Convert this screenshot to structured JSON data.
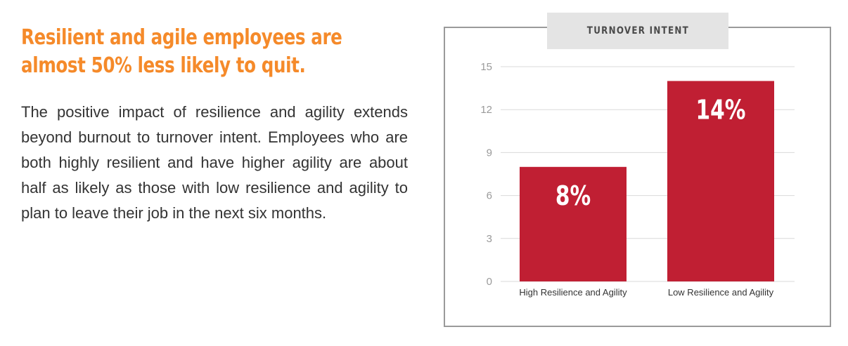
{
  "headline": {
    "line1": "Resilient and agile employees are",
    "line2": "almost 50% less likely to quit."
  },
  "body_text": "The positive impact of resilience and agility extends beyond burnout to turnover intent. Employees who are both highly resilient and have higher agility are about half as likely as those with low resilience and agility to plan to leave their job in the next six months.",
  "colors": {
    "headline": "#f58a2a",
    "bar": "#c01f33",
    "grid": "#d9d9d9",
    "tab": "#e4e4e4"
  },
  "chart_data": {
    "type": "bar",
    "title": "TURNOVER INTENT",
    "categories": [
      "High Resilience and Agility",
      "Low Resilience and Agility"
    ],
    "values": [
      8,
      14
    ],
    "value_labels": [
      "8%",
      "14%"
    ],
    "ylim": [
      0,
      15
    ],
    "yticks": [
      0,
      3,
      6,
      9,
      12,
      15
    ],
    "xlabel": "",
    "ylabel": "",
    "grid": true,
    "legend": "none"
  }
}
